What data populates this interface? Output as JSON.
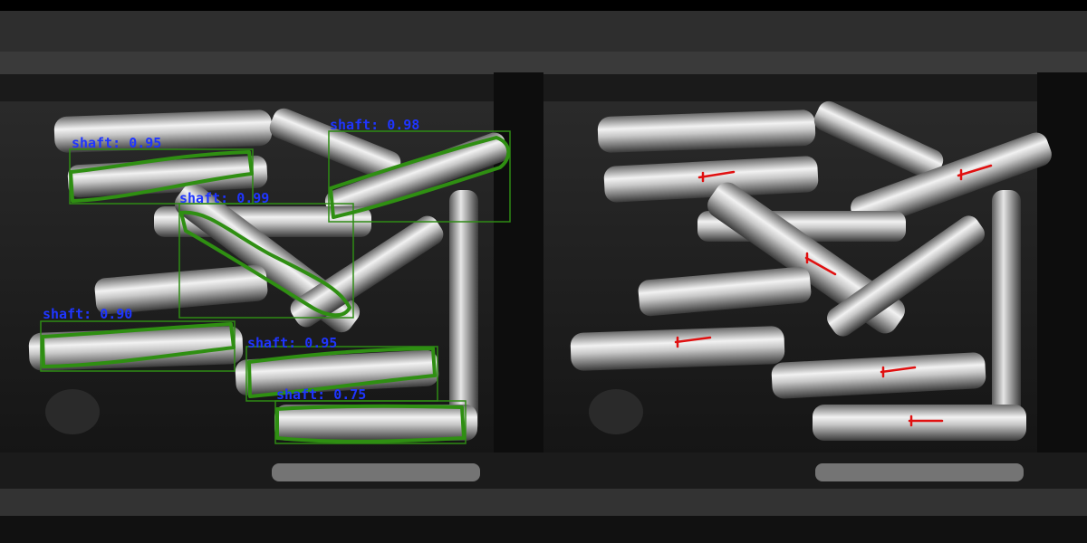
{
  "colors": {
    "box": "#2e8b14",
    "contour": "#2f8f12",
    "label": "#1f35ff",
    "marker": "#e01010",
    "background": "#0b0b0b"
  },
  "detections": [
    {
      "label": "shaft: 0.95"
    },
    {
      "label": "shaft: 0.98"
    },
    {
      "label": "shaft: 0.99"
    },
    {
      "label": "shaft: 0.90"
    },
    {
      "label": "shaft: 0.95"
    },
    {
      "label": "shaft: 0.75"
    }
  ]
}
